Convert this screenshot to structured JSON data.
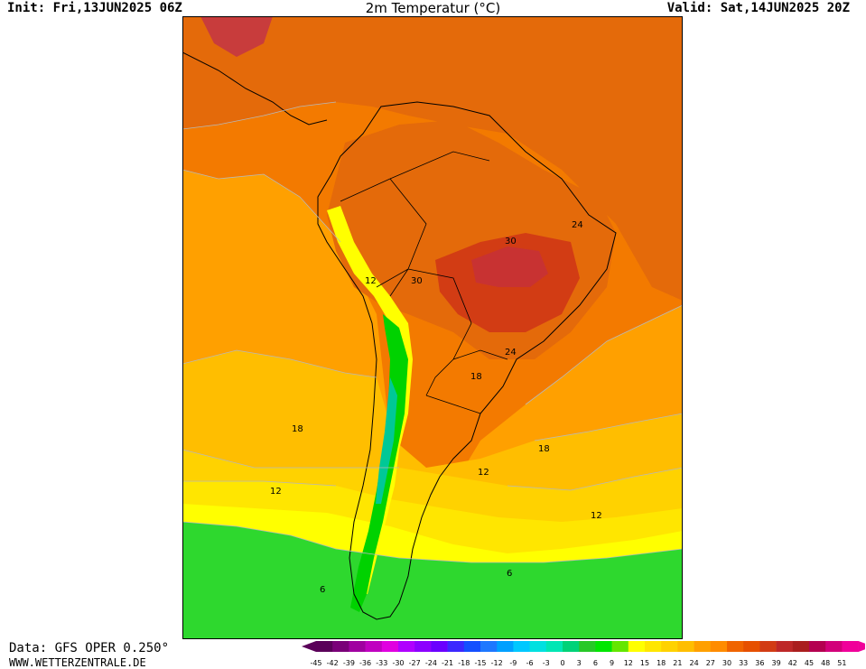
{
  "header": {
    "init": "Init: Fri,13JUN2025 06Z",
    "title": "2m Temperatur (°C)",
    "valid": "Valid: Sat,14JUN2025 20Z"
  },
  "footer": {
    "data_source": "Data: GFS OPER 0.250°",
    "website": "WWW.WETTERZENTRALE.DE"
  },
  "legend": {
    "ticks": [
      "-45",
      "-42",
      "-39",
      "-36",
      "-33",
      "-30",
      "-27",
      "-24",
      "-21",
      "-18",
      "-15",
      "-12",
      "-9",
      "-6",
      "-3",
      "0",
      "3",
      "6",
      "9",
      "12",
      "15",
      "18",
      "21",
      "24",
      "27",
      "30",
      "33",
      "36",
      "39",
      "42",
      "45",
      "48",
      "51"
    ],
    "colors": [
      "#5a0059",
      "#7a0078",
      "#a000a0",
      "#c000c0",
      "#e000e0",
      "#b000ff",
      "#8c00ff",
      "#6a00ff",
      "#3c28ff",
      "#1450ff",
      "#1e78ff",
      "#00a0ff",
      "#00c8ff",
      "#00e0e0",
      "#00e6b4",
      "#00d278",
      "#28c828",
      "#00e600",
      "#64e600",
      "#ffff00",
      "#ffe600",
      "#ffd200",
      "#ffbe00",
      "#ffa000",
      "#ff8c00",
      "#f06400",
      "#e65000",
      "#d23c14",
      "#be2828",
      "#aa1e1e",
      "#b40050",
      "#d2007a",
      "#f0009a"
    ]
  },
  "map_labels": [
    {
      "text": "30",
      "name": "isotherm-label-30-brazil"
    },
    {
      "text": "24",
      "name": "isotherm-label-24-northeast"
    },
    {
      "text": "30",
      "name": "isotherm-label-30-bolivia"
    },
    {
      "text": "12",
      "name": "isotherm-label-12-andes"
    },
    {
      "text": "24",
      "name": "isotherm-label-24-south-brazil"
    },
    {
      "text": "18",
      "name": "isotherm-label-18-paraguay"
    },
    {
      "text": "18",
      "name": "isotherm-label-18-pacific"
    },
    {
      "text": "18",
      "name": "isotherm-label-18-atlantic"
    },
    {
      "text": "12",
      "name": "isotherm-label-12-pacific"
    },
    {
      "text": "12",
      "name": "isotherm-label-12-argentina"
    },
    {
      "text": "12",
      "name": "isotherm-label-12-south-atlantic"
    },
    {
      "text": "6",
      "name": "isotherm-label-6-atlantic"
    },
    {
      "text": "6",
      "name": "isotherm-label-6-pacific"
    }
  ]
}
